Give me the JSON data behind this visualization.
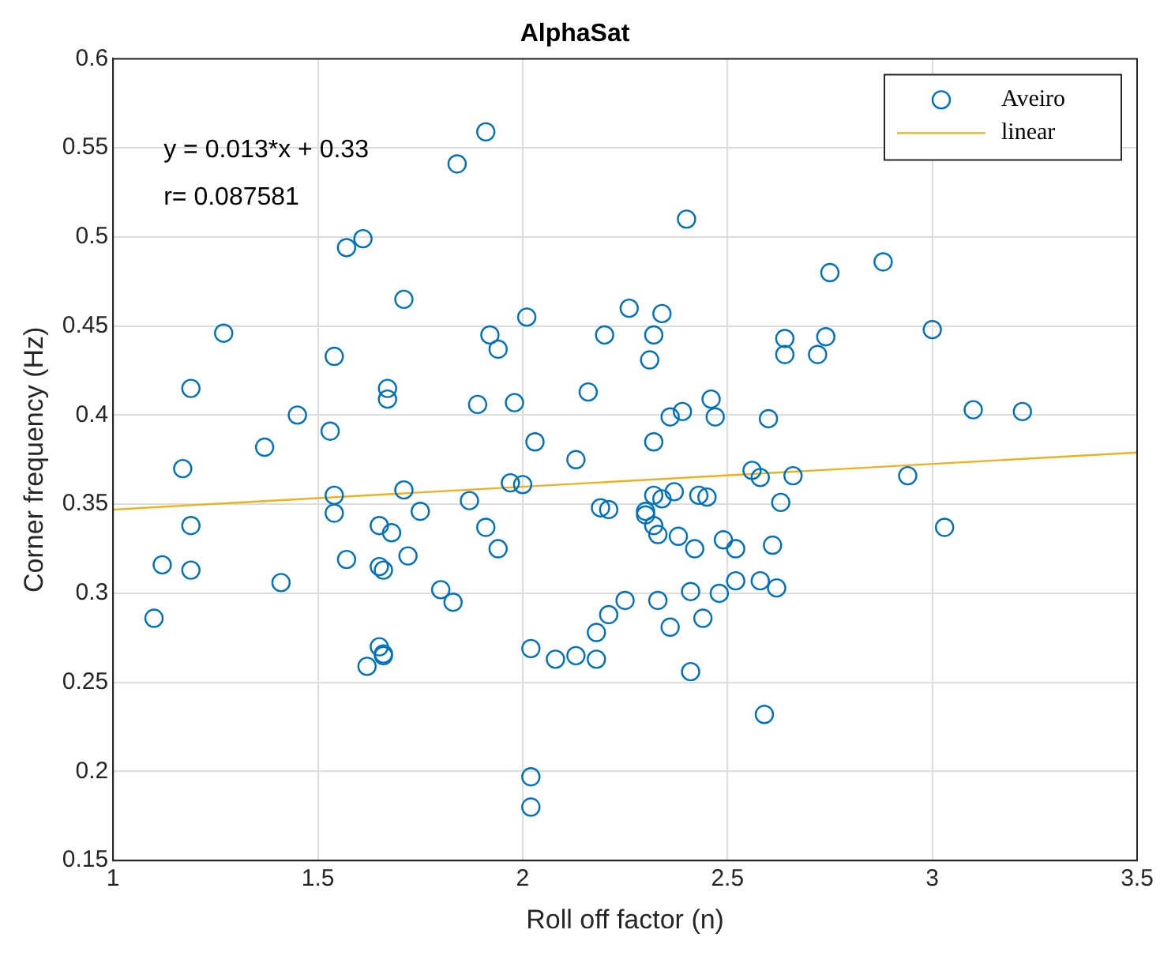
{
  "chart_data": {
    "type": "scatter",
    "title": "AlphaSat",
    "xlabel": "Roll off factor (n)",
    "ylabel": "Corner frequency (Hz)",
    "annotations": [
      "y = 0.013*x + 0.33",
      "r= 0.087581"
    ],
    "xlim": [
      1,
      3.5
    ],
    "xticks": [
      1,
      1.5,
      2,
      2.5,
      3,
      3.5
    ],
    "ylim": [
      0.15,
      0.6
    ],
    "yticks": [
      0.15,
      0.2,
      0.25,
      0.3,
      0.35,
      0.4,
      0.45,
      0.5,
      0.55,
      0.6
    ],
    "grid": true,
    "legend": "top right",
    "marker": "circle",
    "series": [
      {
        "name": "Aveiro",
        "color": "#0072bd",
        "x": [
          1.1,
          1.12,
          1.17,
          1.19,
          1.19,
          1.19,
          1.27,
          1.37,
          1.41,
          1.45,
          1.53,
          1.54,
          1.54,
          1.54,
          1.57,
          1.57,
          1.61,
          1.62,
          1.65,
          1.66,
          1.66,
          1.65,
          1.66,
          1.65,
          1.67,
          1.67,
          1.68,
          1.71,
          1.71,
          1.72,
          1.75,
          1.8,
          1.83,
          1.84,
          1.87,
          1.89,
          1.91,
          1.91,
          1.92,
          1.94,
          1.94,
          1.97,
          2.0,
          1.98,
          2.01,
          2.02,
          2.02,
          2.02,
          2.03,
          2.08,
          2.13,
          2.13,
          2.16,
          2.18,
          2.18,
          2.2,
          2.19,
          2.21,
          2.21,
          2.25,
          2.26,
          2.3,
          2.3,
          2.31,
          2.32,
          2.32,
          2.32,
          2.32,
          2.33,
          2.33,
          2.34,
          2.34,
          2.36,
          2.36,
          2.37,
          2.38,
          2.39,
          2.4,
          2.41,
          2.41,
          2.42,
          2.43,
          2.44,
          2.45,
          2.46,
          2.47,
          2.48,
          2.49,
          2.52,
          2.52,
          2.56,
          2.58,
          2.58,
          2.59,
          2.6,
          2.61,
          2.62,
          2.63,
          2.64,
          2.64,
          2.66,
          2.72,
          2.74,
          2.75,
          2.88,
          2.94,
          3.0,
          3.03,
          3.1,
          3.22
        ],
        "values": [
          0.286,
          0.316,
          0.37,
          0.338,
          0.313,
          0.415,
          0.446,
          0.382,
          0.306,
          0.4,
          0.391,
          0.433,
          0.355,
          0.345,
          0.319,
          0.494,
          0.499,
          0.259,
          0.27,
          0.266,
          0.265,
          0.315,
          0.313,
          0.338,
          0.415,
          0.409,
          0.334,
          0.465,
          0.358,
          0.321,
          0.346,
          0.302,
          0.295,
          0.541,
          0.352,
          0.406,
          0.559,
          0.337,
          0.445,
          0.437,
          0.325,
          0.362,
          0.361,
          0.407,
          0.455,
          0.269,
          0.197,
          0.18,
          0.385,
          0.263,
          0.265,
          0.375,
          0.413,
          0.278,
          0.263,
          0.445,
          0.348,
          0.347,
          0.288,
          0.296,
          0.46,
          0.346,
          0.344,
          0.431,
          0.445,
          0.385,
          0.355,
          0.338,
          0.333,
          0.296,
          0.457,
          0.353,
          0.281,
          0.399,
          0.357,
          0.332,
          0.402,
          0.51,
          0.301,
          0.256,
          0.325,
          0.355,
          0.286,
          0.354,
          0.409,
          0.399,
          0.3,
          0.33,
          0.307,
          0.325,
          0.369,
          0.365,
          0.307,
          0.232,
          0.398,
          0.327,
          0.303,
          0.351,
          0.443,
          0.434,
          0.366,
          0.434,
          0.444,
          0.48,
          0.486,
          0.366,
          0.448,
          0.337,
          0.403,
          0.402
        ]
      },
      {
        "name": "linear",
        "type": "line",
        "color": "#edb120",
        "line_style": "solid",
        "marker": "none",
        "x": [
          1,
          3.5
        ],
        "values": [
          0.347,
          0.379
        ]
      }
    ]
  }
}
